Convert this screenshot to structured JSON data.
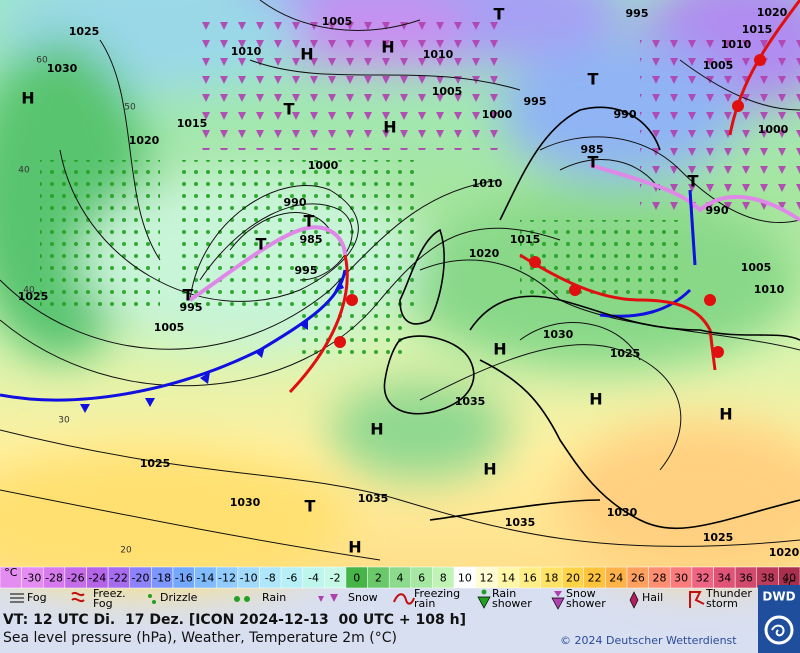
{
  "map": {
    "pressure_labels": [
      "1025",
      "1030",
      "1005",
      "1010",
      "1010",
      "1005",
      "995",
      "1000",
      "990",
      "985",
      "1015",
      "1020",
      "1000",
      "1010",
      "990",
      "985",
      "995",
      "995",
      "1005",
      "1015",
      "1020",
      "1030",
      "1025",
      "1035",
      "1025",
      "1030",
      "1035",
      "1035",
      "1030",
      "1025",
      "1020",
      "1020",
      "1015",
      "1010",
      "1005",
      "1000",
      "990",
      "1005",
      "1010",
      "1025",
      "995"
    ],
    "systems": [
      "H",
      "H",
      "H",
      "H",
      "T",
      "T",
      "T",
      "T",
      "T",
      "T",
      "T",
      "T",
      "H",
      "H",
      "H",
      "H",
      "H",
      "H",
      "T"
    ],
    "lat_labels": [
      "60",
      "50",
      "40",
      "40",
      "30",
      "20"
    ]
  },
  "scale": {
    "unit": "°C",
    "cells": [
      {
        "label": "-30",
        "color": "#e48cf2"
      },
      {
        "label": "-28",
        "color": "#d67aee"
      },
      {
        "label": "-26",
        "color": "#c56ce8"
      },
      {
        "label": "-24",
        "color": "#b464e6"
      },
      {
        "label": "-22",
        "color": "#a56cf0"
      },
      {
        "label": "-20",
        "color": "#8c82fa"
      },
      {
        "label": "-18",
        "color": "#7c96fc"
      },
      {
        "label": "-16",
        "color": "#74a8fc"
      },
      {
        "label": "-14",
        "color": "#80bcfc"
      },
      {
        "label": "-12",
        "color": "#92ccfc"
      },
      {
        "label": "-10",
        "color": "#a2dafc"
      },
      {
        "label": "-8",
        "color": "#aee6fa"
      },
      {
        "label": "-6",
        "color": "#b6f0f6"
      },
      {
        "label": "-4",
        "color": "#bef6ee"
      },
      {
        "label": "-2",
        "color": "#c6fae6"
      },
      {
        "label": "0",
        "color": "#46b446"
      },
      {
        "label": "2",
        "color": "#6ac86a"
      },
      {
        "label": "4",
        "color": "#8cda8c"
      },
      {
        "label": "6",
        "color": "#a6e8a2"
      },
      {
        "label": "8",
        "color": "#c0f4b4"
      },
      {
        "label": "10",
        "color": "#ffffff"
      },
      {
        "label": "12",
        "color": "#fffbd2"
      },
      {
        "label": "14",
        "color": "#fff6a8"
      },
      {
        "label": "16",
        "color": "#ffee86"
      },
      {
        "label": "18",
        "color": "#ffe266"
      },
      {
        "label": "20",
        "color": "#ffd448"
      },
      {
        "label": "22",
        "color": "#ffc43c"
      },
      {
        "label": "24",
        "color": "#ffb248"
      },
      {
        "label": "26",
        "color": "#ffa05e"
      },
      {
        "label": "28",
        "color": "#ff8e72"
      },
      {
        "label": "30",
        "color": "#fb7c7c"
      },
      {
        "label": "32",
        "color": "#ef6482"
      },
      {
        "label": "34",
        "color": "#df5476"
      },
      {
        "label": "36",
        "color": "#cf4a6c"
      },
      {
        "label": "38",
        "color": "#bd3c5c"
      },
      {
        "label": "40",
        "color": "#a8304e"
      }
    ]
  },
  "legend": {
    "items": [
      "Fog",
      "Freez. Fog",
      "Drizzle",
      "Rain",
      "Snow",
      "Freezing rain",
      "Rain shower",
      "Snow shower",
      "Hail",
      "Thunder storm"
    ]
  },
  "footer": {
    "valid_time": "VT: 12 UTC Di.  17 Dez. [ICON 2024-12-13  00 UTC + 108 h]",
    "description": "Sea level pressure (hPa), Weather, Temperature 2m (°C)",
    "copyright": "© 2024 Deutscher Wetterdienst",
    "logo": "DWD"
  }
}
